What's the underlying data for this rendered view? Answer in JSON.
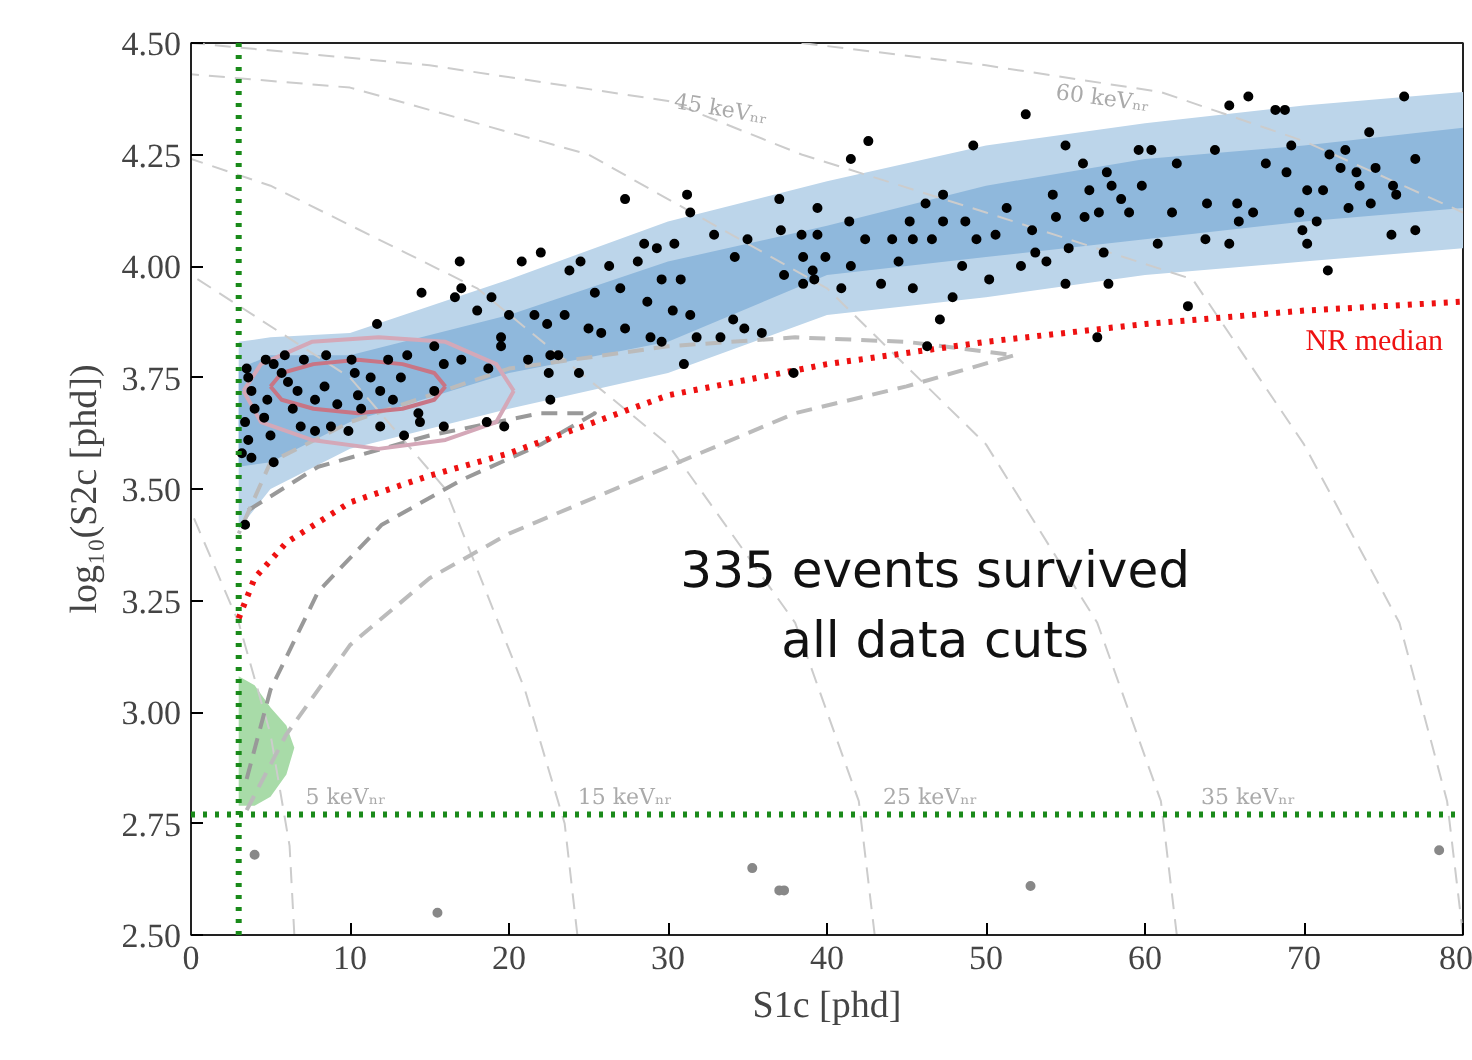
{
  "chart_data": {
    "type": "scatter",
    "xlabel": "S1c [phd]",
    "ylabel": "log₁₀(S2c [phd])",
    "xlim": [
      0,
      80
    ],
    "xticks": [
      0,
      10,
      20,
      30,
      40,
      50,
      60,
      70,
      80
    ],
    "ylim": [
      2.5,
      4.5
    ],
    "yticks": [
      {
        "value": 2.5,
        "label": "2.50"
      },
      {
        "value": 2.75,
        "label": "2.75"
      },
      {
        "value": 3.0,
        "label": "3.00"
      },
      {
        "value": 3.25,
        "label": "3.25"
      },
      {
        "value": 3.5,
        "label": "3.50"
      },
      {
        "value": 3.75,
        "label": "3.75"
      },
      {
        "value": 4.0,
        "label": "4.00"
      },
      {
        "value": 4.25,
        "label": "4.25"
      },
      {
        "value": 4.5,
        "label": "4.50"
      }
    ],
    "series": [
      {
        "type": "line",
        "color": "#bcd5ea",
        "x": [
          3,
          5,
          10,
          20,
          30,
          40,
          50,
          60,
          70,
          80
        ],
        "values": [
          null,
          null,
          null,
          null,
          null,
          null,
          null,
          null,
          null,
          null
        ],
        "lower": [
          3.41,
          3.5,
          3.59,
          3.68,
          3.76,
          3.89,
          3.93,
          3.98,
          4.01,
          4.04
        ],
        "upper": [
          3.83,
          3.84,
          3.85,
          3.97,
          4.1,
          4.19,
          4.27,
          4.32,
          4.36,
          4.39
        ]
      },
      {
        "type": "line",
        "color": "#8fb8dc",
        "x": [
          3,
          5,
          10,
          20,
          30,
          40,
          50,
          60,
          70,
          80
        ],
        "values": [
          null,
          null,
          null,
          null,
          null,
          null,
          null,
          null,
          null,
          null
        ],
        "lower": [
          3.55,
          3.56,
          3.65,
          3.76,
          3.83,
          3.98,
          4.02,
          4.06,
          4.1,
          4.13
        ],
        "upper": [
          3.77,
          3.8,
          3.8,
          3.89,
          4.01,
          4.09,
          4.18,
          4.24,
          4.27,
          4.31
        ]
      },
      {
        "type": "line",
        "color": "#a8dba8",
        "x": [
          3,
          4,
          5,
          6,
          6.5
        ],
        "values": [
          null,
          null,
          null,
          null,
          null
        ],
        "lower": [
          2.79,
          2.79,
          2.81,
          2.86,
          2.92
        ],
        "upper": [
          3.08,
          3.06,
          3.01,
          2.97,
          2.92
        ]
      },
      {
        "type": "line",
        "color": "#cccccc",
        "line_style": "dashed",
        "x": [
          6.5,
          6.2,
          5,
          3,
          0
        ],
        "values": [
          2.5,
          2.7,
          2.95,
          3.2,
          3.45
        ]
      },
      {
        "type": "line",
        "color": "#cccccc",
        "line_style": "dashed",
        "x": [
          24.3,
          23.5,
          21,
          16,
          10,
          0
        ],
        "values": [
          2.5,
          2.75,
          3.05,
          3.5,
          3.75,
          3.98
        ]
      },
      {
        "type": "line",
        "color": "#cccccc",
        "line_style": "dashed",
        "x": [
          43,
          42,
          38,
          30,
          18,
          5,
          0
        ],
        "values": [
          2.5,
          2.8,
          3.2,
          3.6,
          3.95,
          4.18,
          4.24
        ]
      },
      {
        "type": "line",
        "color": "#cccccc",
        "line_style": "dashed",
        "x": [
          62,
          61,
          57,
          50,
          40,
          25,
          10,
          0
        ],
        "values": [
          2.5,
          2.8,
          3.2,
          3.6,
          3.95,
          4.25,
          4.4,
          4.43
        ]
      },
      {
        "type": "line",
        "color": "#cccccc",
        "line_style": "dashed",
        "x": [
          80,
          79,
          76,
          70,
          63,
          50,
          38.4,
          30,
          15,
          0
        ],
        "values": [
          2.5,
          2.8,
          3.2,
          3.6,
          3.97,
          4.12,
          4.25,
          4.37,
          4.45,
          4.5
        ]
      },
      {
        "type": "line",
        "color": "#cccccc",
        "line_style": "dashed",
        "x": [
          38.4,
          50,
          61,
          70,
          80
        ],
        "values": [
          4.5,
          4.45,
          4.39,
          4.28,
          4.12
        ]
      },
      {
        "type": "line",
        "color": "#999999",
        "line_style": "dashed",
        "x": [
          3.5,
          5,
          8,
          12,
          17,
          22,
          25.4,
          22,
          15,
          8,
          3.5
        ],
        "values": [
          2.85,
          3.05,
          3.27,
          3.42,
          3.52,
          3.6,
          3.67,
          3.67,
          3.62,
          3.55,
          3.45
        ]
      },
      {
        "type": "line",
        "color": "#bbbbbb",
        "line_style": "dashed",
        "x": [
          3.5,
          6,
          10,
          15,
          20,
          30,
          38,
          45,
          51.8,
          45,
          38,
          30,
          20,
          10,
          5,
          3
        ],
        "values": [
          2.78,
          2.95,
          3.15,
          3.3,
          3.4,
          3.55,
          3.67,
          3.73,
          3.8,
          3.83,
          3.84,
          3.82,
          3.77,
          3.65,
          3.56,
          3.4
        ]
      },
      {
        "type": "line",
        "color": "#d4a8b8",
        "line_style": "solid",
        "x": [
          3.3,
          4.4,
          7.6,
          11.8,
          16,
          19.2,
          20.3
        ],
        "values": [
          3.72,
          3.78,
          3.83,
          3.84,
          3.83,
          3.78,
          3.72
        ]
      },
      {
        "type": "line",
        "color": "#d4a8b8",
        "line_style": "solid",
        "x": [
          3.3,
          4.4,
          7.6,
          11.8,
          16,
          19.2,
          20.3
        ],
        "values": [
          3.72,
          3.65,
          3.61,
          3.59,
          3.61,
          3.65,
          3.72
        ]
      },
      {
        "type": "line",
        "color": "#c87585",
        "line_style": "solid",
        "x": [
          5,
          5.7,
          7.7,
          10.5,
          13.3,
          15.3,
          16
        ],
        "values": [
          3.73,
          3.76,
          3.78,
          3.79,
          3.78,
          3.76,
          3.73
        ]
      },
      {
        "type": "line",
        "color": "#c87585",
        "line_style": "solid",
        "x": [
          5,
          5.7,
          7.7,
          10.5,
          13.3,
          15.3,
          16
        ],
        "values": [
          3.73,
          3.7,
          3.68,
          3.67,
          3.68,
          3.7,
          3.73
        ]
      },
      {
        "type": "line",
        "name": "NR median",
        "color": "#ee1111",
        "line_style": "dotted",
        "x": [
          3,
          4,
          6,
          10,
          15,
          20,
          30,
          40,
          50,
          60,
          70,
          80
        ],
        "values": [
          3.21,
          3.3,
          3.38,
          3.47,
          3.53,
          3.58,
          3.71,
          3.78,
          3.83,
          3.87,
          3.9,
          3.92
        ]
      },
      {
        "color": "#888888",
        "marker": "circle",
        "x": [
          4.0,
          15.5,
          35.3,
          37.0,
          37.3,
          52.8,
          78.5
        ],
        "values": [
          2.68,
          2.55,
          2.65,
          2.6,
          2.6,
          2.61,
          2.69
        ]
      },
      {
        "color": "#000000",
        "marker": "circle",
        "x": [
          27.3,
          31.2,
          31.4,
          37.0,
          37.1,
          39.4,
          16.9,
          20.8,
          22.0,
          14.5,
          16.6,
          17.0,
          18.9,
          11.7,
          18.0,
          20.0,
          21.6,
          23.8,
          24.5,
          26.3,
          28.1,
          28.5,
          29.3,
          30.4,
          32.9,
          34.2,
          35.0,
          37.3,
          39.2,
          25.4,
          27.0,
          29.6,
          30.8,
          28.7,
          25.0,
          23.5,
          22.4,
          25.8,
          27.3,
          30.3,
          31.4,
          34.1,
          34.8,
          35.9,
          28.9,
          29.6,
          31.8,
          33.3,
          31.0,
          37.9,
          19.5,
          19.5,
          21.2,
          22.6,
          23.1,
          24.4,
          22.5,
          22.6,
          19.7,
          18.6,
          18.7,
          17.0,
          15.9,
          15.3,
          3.5,
          3.6,
          3.8,
          4.0,
          3.4,
          3.6,
          3.2,
          3.8,
          3.4,
          4.7,
          4.8,
          4.6,
          5.0,
          5.2,
          5.9,
          5.7,
          6.1,
          6.7,
          6.4,
          6.9,
          7.1,
          7.8,
          8.4,
          8.5,
          9.2,
          8.8,
          9.9,
          10.1,
          10.3,
          10.5,
          10.7,
          11.3,
          11.9,
          12.4,
          12.7,
          13.2,
          13.6,
          14.3,
          14.4,
          13.4,
          15.3,
          15.9,
          11.9,
          7.8,
          5.2,
          38.4,
          38.5,
          38.5,
          39.1,
          39.4,
          39.9,
          40.9,
          41.4,
          41.5,
          41.5,
          42.6,
          42.4,
          43.4,
          44.1,
          44.5,
          45.2,
          45.4,
          45.4,
          46.2,
          46.6,
          47.3,
          47.3,
          47.9,
          48.5,
          48.7,
          49.2,
          47.1,
          46.3,
          49.4,
          50.2,
          50.6,
          51.3,
          52.2,
          52.5,
          52.9,
          53.1,
          53.8,
          54.2,
          54.4,
          55.0,
          55.0,
          55.2,
          56.1,
          56.2,
          56.5,
          57.1,
          57.6,
          57.4,
          57.0,
          57.7,
          57.9,
          58.5,
          59.0,
          59.6,
          59.8,
          60.4,
          60.8,
          61.7,
          62.0,
          62.7,
          63.9,
          64.4,
          63.8,
          65.3,
          65.3,
          65.8,
          66.5,
          65.9,
          66.8,
          67.6,
          68.2,
          68.8,
          68.9,
          69.2,
          69.7,
          69.9,
          70.2,
          70.8,
          70.2,
          71.2,
          71.5,
          71.6,
          72.3,
          72.6,
          72.8,
          73.3,
          73.5,
          74.1,
          74.2,
          74.5,
          75.5,
          75.6,
          76.3,
          77.0,
          77.0,
          75.8
        ],
        "values": [
          4.15,
          4.16,
          4.12,
          4.15,
          4.08,
          4.07,
          4.01,
          4.01,
          4.03,
          3.94,
          3.93,
          3.95,
          3.93,
          3.87,
          3.9,
          3.89,
          3.89,
          3.99,
          4.01,
          4.0,
          4.01,
          4.05,
          4.04,
          4.05,
          4.07,
          4.02,
          4.06,
          3.98,
          3.97,
          3.94,
          3.95,
          3.97,
          3.97,
          3.92,
          3.86,
          3.89,
          3.87,
          3.85,
          3.86,
          3.9,
          3.89,
          3.88,
          3.86,
          3.85,
          3.84,
          3.83,
          3.84,
          3.84,
          3.78,
          3.76,
          3.84,
          3.82,
          3.79,
          3.8,
          3.8,
          3.76,
          3.76,
          3.7,
          3.64,
          3.65,
          3.77,
          3.79,
          3.78,
          3.82,
          3.77,
          3.75,
          3.72,
          3.68,
          3.65,
          3.61,
          3.58,
          3.57,
          3.42,
          3.79,
          3.7,
          3.66,
          3.62,
          3.56,
          3.8,
          3.76,
          3.74,
          3.72,
          3.68,
          3.64,
          3.79,
          3.7,
          3.73,
          3.8,
          3.69,
          3.64,
          3.63,
          3.79,
          3.76,
          3.71,
          3.68,
          3.75,
          3.72,
          3.79,
          3.7,
          3.75,
          3.8,
          3.67,
          3.65,
          3.62,
          3.72,
          3.64,
          3.64,
          3.63,
          3.78,
          4.07,
          4.02,
          3.96,
          3.99,
          4.13,
          4.02,
          3.95,
          4.1,
          4.0,
          4.24,
          4.28,
          4.06,
          3.96,
          4.06,
          4.01,
          4.1,
          4.06,
          3.95,
          4.14,
          4.06,
          4.16,
          4.1,
          3.93,
          4.0,
          4.1,
          4.27,
          3.88,
          3.82,
          4.06,
          3.97,
          4.07,
          4.13,
          4.0,
          4.34,
          4.08,
          4.03,
          4.01,
          4.16,
          4.11,
          4.27,
          3.96,
          4.04,
          4.23,
          4.11,
          4.17,
          4.12,
          4.21,
          4.03,
          3.84,
          3.96,
          4.18,
          4.15,
          4.12,
          4.26,
          4.18,
          4.26,
          4.05,
          4.12,
          4.23,
          3.91,
          4.14,
          4.26,
          4.06,
          4.05,
          4.36,
          4.14,
          4.38,
          4.1,
          4.12,
          4.23,
          4.35,
          4.35,
          4.21,
          4.27,
          4.12,
          4.08,
          4.05,
          4.1,
          4.17,
          4.17,
          3.99,
          4.25,
          4.22,
          4.26,
          4.13,
          4.21,
          4.18,
          4.3,
          4.14,
          4.22,
          4.07,
          4.18,
          4.38,
          4.24,
          4.08,
          4.16
        ]
      }
    ],
    "ref_lines": [
      {
        "axis": "x",
        "value": 3,
        "color": "#1a8a1a",
        "line_style": "dotted"
      },
      {
        "axis": "y",
        "value": 2.77,
        "color": "#1a8a1a",
        "line_style": "dotted"
      }
    ],
    "annotations": [
      "335 events survived\nall data cuts",
      "5 keVₙᵣ",
      "15 keVₙᵣ",
      "25 keVₙᵣ",
      "35 keVₙᵣ",
      "45 keVₙᵣ",
      "60 keVₙᵣ"
    ]
  }
}
